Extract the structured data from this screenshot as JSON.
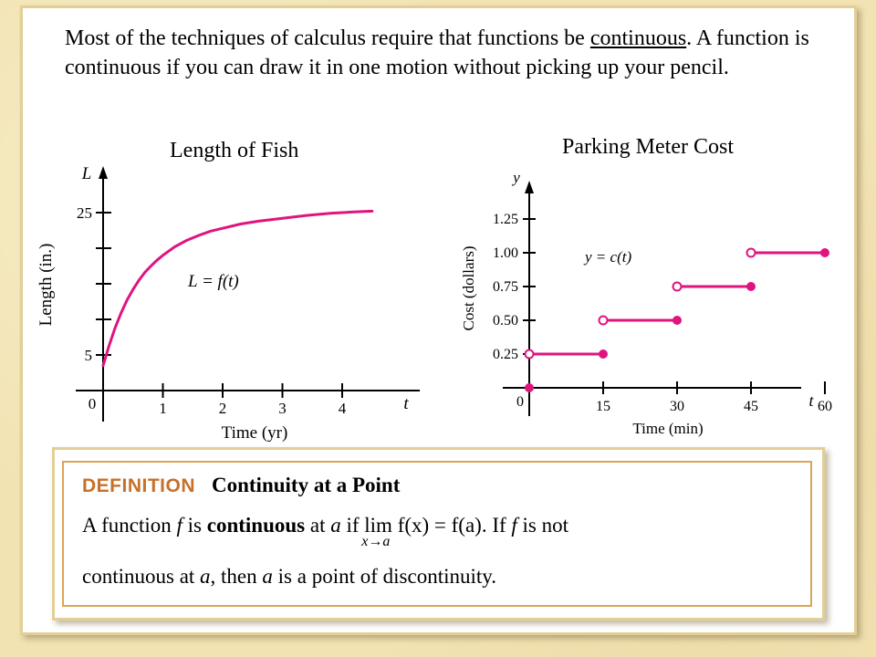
{
  "intro": {
    "text_before": "Most of the techniques of calculus require that functions be ",
    "underlined": "continuous",
    "text_after": ". A function is continuous if you can draw it in one motion without picking up your pencil."
  },
  "chart_data": [
    {
      "type": "line",
      "title": "Length of Fish",
      "xlabel": "Time (yr)",
      "ylabel": "Length (in.)",
      "x_axis_var": "t",
      "y_axis_var": "L",
      "origin_label": "0",
      "xlim": [
        0,
        5
      ],
      "ylim": [
        0,
        30
      ],
      "x_ticks": [
        1,
        2,
        3,
        4
      ],
      "x_tick_labels": [
        "1",
        "2",
        "3",
        "4"
      ],
      "y_ticks": [
        5,
        10,
        15,
        20,
        25
      ],
      "y_tick_labels": [
        "5",
        "",
        "",
        "",
        "25"
      ],
      "curve_label": "L = f(t)",
      "series": [
        {
          "x": [
            0,
            0.1,
            0.2,
            0.3,
            0.4,
            0.5,
            0.6,
            0.7,
            0.8,
            0.9,
            1.0,
            1.2,
            1.4,
            1.6,
            1.8,
            2.0,
            2.3,
            2.6,
            3.0,
            3.4,
            3.8,
            4.2,
            4.5
          ],
          "y": [
            3.5,
            6.3,
            8.8,
            10.9,
            12.7,
            14.2,
            15.5,
            16.6,
            17.5,
            18.3,
            19.0,
            20.2,
            21.1,
            21.8,
            22.4,
            22.8,
            23.4,
            23.8,
            24.2,
            24.6,
            24.9,
            25.1,
            25.2
          ]
        }
      ]
    },
    {
      "type": "scatter",
      "title": "Parking Meter Cost",
      "xlabel": "Time (min)",
      "ylabel": "Cost (dollars)",
      "x_axis_var": "t",
      "y_axis_var": "y",
      "origin_label": "0",
      "xlim": [
        0,
        70
      ],
      "ylim": [
        0,
        1.35
      ],
      "x_ticks": [
        15,
        30,
        45,
        60
      ],
      "x_tick_labels": [
        "15",
        "30",
        "45",
        "60"
      ],
      "y_ticks": [
        0.25,
        0.5,
        0.75,
        1.0,
        1.25
      ],
      "y_tick_labels": [
        "0.25",
        "0.50",
        "0.75",
        "1.00",
        "1.25"
      ],
      "curve_label": "y = c(t)",
      "segments": [
        {
          "x_start": 0,
          "x_end": 15,
          "y": 0.25,
          "start_open": true,
          "end_closed": true
        },
        {
          "x_start": 15,
          "x_end": 30,
          "y": 0.5,
          "start_open": true,
          "end_closed": true
        },
        {
          "x_start": 30,
          "x_end": 45,
          "y": 0.75,
          "start_open": true,
          "end_closed": true
        },
        {
          "x_start": 45,
          "x_end": 60,
          "y": 1.0,
          "start_open": true,
          "end_closed": true
        }
      ],
      "isolated_points": [
        {
          "x": 0,
          "y": 0
        }
      ]
    }
  ],
  "definition": {
    "label": "DEFINITION",
    "title": "Continuity at a Point",
    "line1": {
      "p1": "A function ",
      "f1": "f",
      "p2": " is ",
      "bold": "continuous",
      "p3": " at ",
      "a1": "a",
      "p4": " if ",
      "lim": "lim",
      "lim_sub": "x→a",
      "expr": " f(x) = f(a). If ",
      "f2": "f",
      "p5": " is not"
    },
    "line2": {
      "p1": "continuous at ",
      "a1": "a",
      "p2": ", then ",
      "a2": "a",
      "p3": " is a point of discontinuity."
    }
  },
  "colors": {
    "curve": "#e0147f",
    "axis": "#000000",
    "definition_label": "#c7702a",
    "definition_border": "#d9a55a",
    "panel_border": "#e2cf97"
  }
}
